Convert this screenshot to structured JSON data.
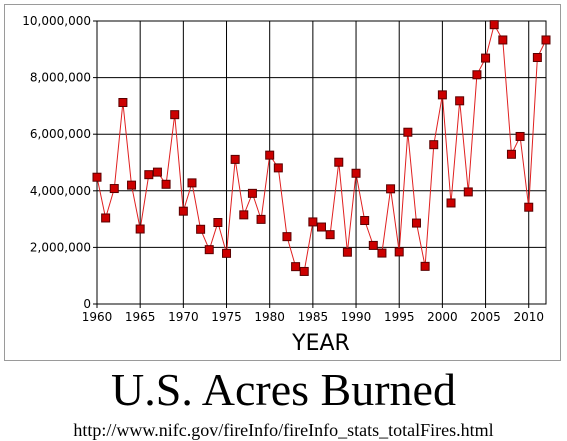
{
  "caption": {
    "title": "U.S. Acres Burned",
    "source_url": "http://www.nifc.gov/fireInfo/fireInfo_stats_totalFires.html"
  },
  "chart_data": {
    "type": "line",
    "title": "",
    "xlabel": "YEAR",
    "ylabel": "",
    "xlim": [
      1960,
      2012
    ],
    "ylim": [
      0,
      10000000
    ],
    "xticks": [
      1960,
      1965,
      1970,
      1975,
      1980,
      1985,
      1990,
      1995,
      2000,
      2005,
      2010
    ],
    "yticks": [
      0,
      2000000,
      4000000,
      6000000,
      8000000,
      10000000
    ],
    "ytick_labels": [
      "0",
      "2,000,000",
      "4,000,000",
      "6,000,000",
      "8,000,000",
      "10,000,000"
    ],
    "grid": true,
    "line_color": "#e02020",
    "marker_fill": "#cc0000",
    "marker_stroke": "#5a0000",
    "series": [
      {
        "x": [
          1960,
          1961,
          1962,
          1963,
          1964,
          1965,
          1966,
          1967,
          1968,
          1969,
          1970,
          1971,
          1972,
          1973,
          1974,
          1975,
          1976,
          1977,
          1978,
          1979,
          1980,
          1981,
          1982,
          1983,
          1984,
          1985,
          1986,
          1987,
          1988,
          1989,
          1990,
          1991,
          1992,
          1993,
          1994,
          1995,
          1996,
          1997,
          1998,
          1999,
          2000,
          2001,
          2002,
          2003,
          2004,
          2005,
          2006,
          2007,
          2008,
          2009,
          2010,
          2011,
          2012
        ],
        "values": [
          4480000,
          3040000,
          4080000,
          7120000,
          4200000,
          2650000,
          4570000,
          4660000,
          4230000,
          6690000,
          3280000,
          4280000,
          2640000,
          1920000,
          2880000,
          1790000,
          5110000,
          3150000,
          3910000,
          2990000,
          5260000,
          4810000,
          2380000,
          1320000,
          1150000,
          2900000,
          2720000,
          2450000,
          5010000,
          1830000,
          4620000,
          2950000,
          2070000,
          1800000,
          4070000,
          1840000,
          6070000,
          2860000,
          1330000,
          5630000,
          7390000,
          3570000,
          7180000,
          3960000,
          8100000,
          8690000,
          9870000,
          9330000,
          5290000,
          5920000,
          3420000,
          8710000,
          9330000
        ]
      }
    ]
  }
}
